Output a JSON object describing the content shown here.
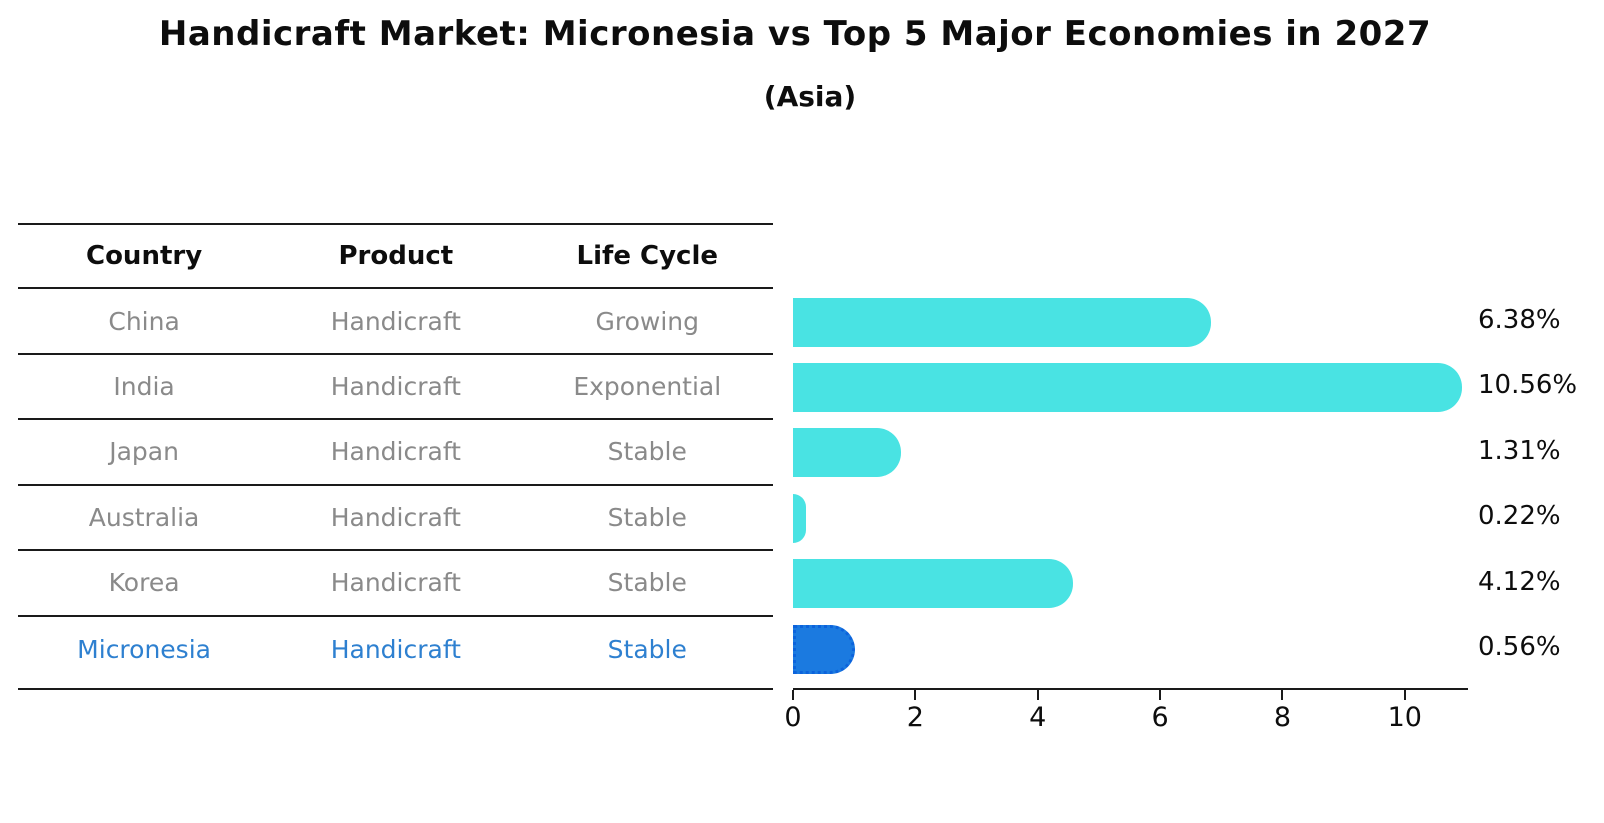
{
  "title": "Handicraft Market: Micronesia vs Top 5 Major Economies in 2027",
  "subtitle": "(Asia)",
  "table": {
    "headers": [
      "Country",
      "Product",
      "Life Cycle"
    ],
    "rows": [
      {
        "country": "China",
        "product": "Handicraft",
        "life_cycle": "Growing",
        "highlight": false
      },
      {
        "country": "India",
        "product": "Handicraft",
        "life_cycle": "Exponential",
        "highlight": false
      },
      {
        "country": "Japan",
        "product": "Handicraft",
        "life_cycle": "Stable",
        "highlight": false
      },
      {
        "country": "Australia",
        "product": "Handicraft",
        "life_cycle": "Stable",
        "highlight": false
      },
      {
        "country": "Korea",
        "product": "Handicraft",
        "life_cycle": "Stable",
        "highlight": false
      },
      {
        "country": "Micronesia",
        "product": "Handicraft",
        "life_cycle": "Stable",
        "highlight": true
      }
    ]
  },
  "chart_data": {
    "type": "bar",
    "orientation": "horizontal",
    "title": "Handicraft Market: Micronesia vs Top 5 Major Economies in 2027",
    "subtitle": "(Asia)",
    "categories": [
      "China",
      "India",
      "Japan",
      "Australia",
      "Korea",
      "Micronesia"
    ],
    "values": [
      6.38,
      10.56,
      1.31,
      0.22,
      4.12,
      0.56
    ],
    "value_labels": [
      "6.38%",
      "10.56%",
      "1.31%",
      "0.22%",
      "4.12%",
      "0.56%"
    ],
    "x_ticks": [
      0,
      2,
      4,
      6,
      8,
      10
    ],
    "xlim": [
      0,
      11
    ],
    "grid": false,
    "legend": false,
    "highlight_index": 5
  },
  "colors": {
    "bar": "#49E3E3",
    "highlight_bar": "#1B7AE0",
    "highlight_bar_border": "#0C63DC",
    "highlight_text": "#2E80D0",
    "body_text": "#8A8A8A",
    "heading_text": "#0d0d0d"
  }
}
